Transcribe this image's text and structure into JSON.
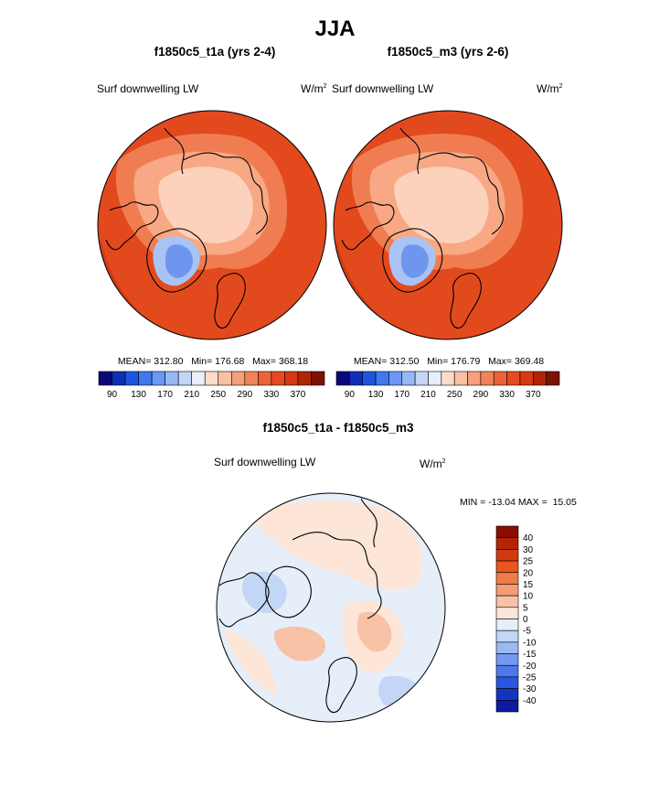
{
  "header": {
    "title": "JJA"
  },
  "panels": [
    {
      "title": "f1850c5_t1a (yrs 2-4)",
      "variable": "Surf downwelling LW",
      "units_base": "W/m",
      "units_exp": "2",
      "stats": {
        "mean_label": "MEAN=",
        "mean": "312.80",
        "min_label": "Min=",
        "min": "176.68",
        "max_label": "Max=",
        "max": "368.18"
      }
    },
    {
      "title": "f1850c5_m3 (yrs 2-6)",
      "variable": "Surf downwelling LW",
      "units_base": "W/m",
      "units_exp": "2",
      "stats": {
        "mean_label": "MEAN=",
        "mean": "312.50",
        "min_label": "Min=",
        "min": "176.79",
        "max_label": "Max=",
        "max": "369.48"
      }
    },
    {
      "title": "f1850c5_t1a - f1850c5_m3",
      "variable": "Surf downwelling LW",
      "units_base": "W/m",
      "units_exp": "2",
      "stats": {
        "min_label": "MIN =",
        "min": "-13.04",
        "max_label": "MAX =",
        "max": "15.05"
      }
    }
  ],
  "chart_data": [
    {
      "type": "heatmap",
      "title": "f1850c5_t1a (yrs 2-4)",
      "variable": "Surf downwelling LW",
      "units": "W/m2",
      "projection": "north polar stereographic",
      "mean": 312.8,
      "min": 176.68,
      "max": 368.18,
      "colorbar": {
        "tick_labels": [
          "90",
          "130",
          "170",
          "210",
          "250",
          "290",
          "330",
          "370"
        ],
        "colors": [
          "#08087a",
          "#0d2fb8",
          "#1e55e0",
          "#3f78f0",
          "#6a98f4",
          "#98b8f4",
          "#c4d6f6",
          "#e8eefa",
          "#fcdcc8",
          "#f9c0a2",
          "#f6a07a",
          "#f28257",
          "#ee6238",
          "#e84a20",
          "#d53a12",
          "#b02508",
          "#7c1200"
        ]
      }
    },
    {
      "type": "heatmap",
      "title": "f1850c5_m3 (yrs 2-6)",
      "variable": "Surf downwelling LW",
      "units": "W/m2",
      "projection": "north polar stereographic",
      "mean": 312.5,
      "min": 176.79,
      "max": 369.48,
      "colorbar": {
        "tick_labels": [
          "90",
          "130",
          "170",
          "210",
          "250",
          "290",
          "330",
          "370"
        ],
        "colors": [
          "#08087a",
          "#0d2fb8",
          "#1e55e0",
          "#3f78f0",
          "#6a98f4",
          "#98b8f4",
          "#c4d6f6",
          "#e8eefa",
          "#fcdcc8",
          "#f9c0a2",
          "#f6a07a",
          "#f28257",
          "#ee6238",
          "#e84a20",
          "#d53a12",
          "#b02508",
          "#7c1200"
        ]
      }
    },
    {
      "type": "heatmap",
      "title": "f1850c5_t1a - f1850c5_m3",
      "variable": "Surf downwelling LW",
      "units": "W/m2",
      "projection": "north polar stereographic",
      "min": -13.04,
      "max": 15.05,
      "colorbar": {
        "orientation": "vertical",
        "tick_labels": [
          "40",
          "30",
          "25",
          "20",
          "15",
          "10",
          "5",
          "0",
          "-5",
          "-10",
          "-15",
          "-20",
          "-25",
          "-30",
          "-40"
        ],
        "colors": [
          "#8b0d00",
          "#b42406",
          "#d23a10",
          "#e6561f",
          "#f07a48",
          "#f59c74",
          "#f8c2a6",
          "#fde6d8",
          "#e6eefa",
          "#c3d6f6",
          "#9bbaf4",
          "#7499f0",
          "#4c78ec",
          "#2a55e0",
          "#1533c0",
          "#0b1aa0"
        ]
      }
    }
  ]
}
